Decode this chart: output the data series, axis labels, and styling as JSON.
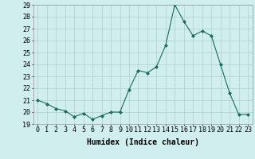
{
  "x": [
    0,
    1,
    2,
    3,
    4,
    5,
    6,
    7,
    8,
    9,
    10,
    11,
    12,
    13,
    14,
    15,
    16,
    17,
    18,
    19,
    20,
    21,
    22,
    23
  ],
  "y": [
    21.0,
    20.7,
    20.3,
    20.1,
    19.6,
    19.9,
    19.4,
    19.7,
    20.0,
    20.0,
    21.9,
    23.5,
    23.3,
    23.8,
    25.6,
    29.0,
    27.6,
    26.4,
    26.8,
    26.4,
    24.0,
    21.6,
    19.8,
    19.8
  ],
  "line_color": "#1a6b5a",
  "marker": "D",
  "marker_size": 2,
  "bg_color": "#d0eeee",
  "grid_color": "#b0d0d0",
  "xlabel": "Humidex (Indice chaleur)",
  "ylim": [
    19,
    29
  ],
  "xlim": [
    -0.5,
    23.5
  ],
  "yticks": [
    19,
    20,
    21,
    22,
    23,
    24,
    25,
    26,
    27,
    28,
    29
  ],
  "xticks": [
    0,
    1,
    2,
    3,
    4,
    5,
    6,
    7,
    8,
    9,
    10,
    11,
    12,
    13,
    14,
    15,
    16,
    17,
    18,
    19,
    20,
    21,
    22,
    23
  ],
  "font_size_label": 7,
  "font_size_tick": 6
}
